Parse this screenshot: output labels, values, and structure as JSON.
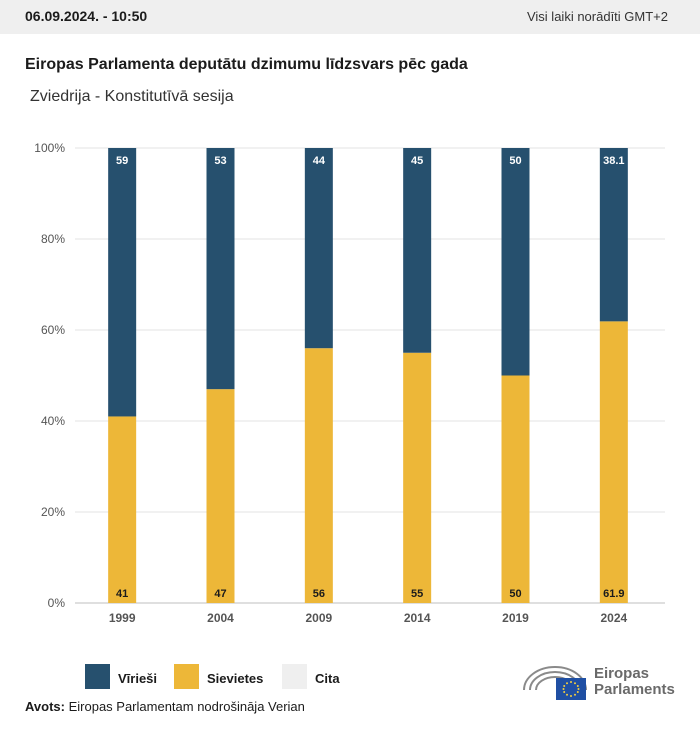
{
  "header": {
    "date": "06.09.2024. - 10:50",
    "timezone": "Visi laiki norādīti GMT+2"
  },
  "title": "Eiropas Parlamenta deputātu dzimumu līdzsvars pēc gada",
  "subtitle": "Zviedrija - Konstitutīvā sesija",
  "colors": {
    "men": "#26506e",
    "women": "#edb738",
    "other": "#efefef",
    "grid": "#e3e3e3"
  },
  "chart_data": {
    "type": "bar",
    "stacked": true,
    "categories": [
      "1999",
      "2004",
      "2009",
      "2014",
      "2019",
      "2024"
    ],
    "series": [
      {
        "name": "Sievietes",
        "values": [
          41,
          47,
          56,
          55,
          50,
          61.9
        ]
      },
      {
        "name": "Vīrieši",
        "values": [
          59,
          53,
          44,
          45,
          50,
          38.1
        ]
      }
    ],
    "ylim": [
      0,
      100
    ],
    "yticks": [
      "0%",
      "20%",
      "40%",
      "60%",
      "80%",
      "100%"
    ],
    "grid": true
  },
  "legend": [
    {
      "label": "Vīrieši",
      "color": "#26506e"
    },
    {
      "label": "Sievietes",
      "color": "#edb738"
    },
    {
      "label": "Cita",
      "color": "#efefef"
    }
  ],
  "source": {
    "label": "Avots:",
    "text": "Eiropas Parlamentam nodrošināja Verian"
  },
  "logo": {
    "line1": "Eiropas",
    "line2": "Parlaments"
  }
}
